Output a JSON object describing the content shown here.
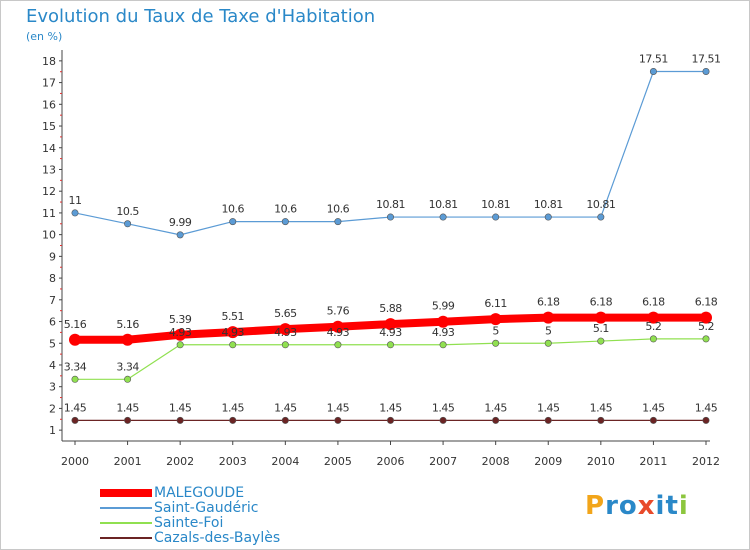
{
  "chart_data": {
    "type": "line",
    "title": "Evolution du Taux de Taxe d'Habitation",
    "subtitle": "(en %)",
    "x": [
      "2000",
      "2001",
      "2002",
      "2003",
      "2004",
      "2005",
      "2006",
      "2007",
      "2008",
      "2009",
      "2010",
      "2011",
      "2012"
    ],
    "y_ticks": [
      "1",
      "2",
      "3",
      "4",
      "5",
      "6",
      "7",
      "8",
      "9",
      "10",
      "11",
      "12",
      "13",
      "14",
      "15",
      "16",
      "17",
      "18"
    ],
    "ylim": [
      0.5,
      18.5
    ],
    "grid": false,
    "legend_position": "bottom-left",
    "series": [
      {
        "name": "MALEGOUDE",
        "color": "#ff0000",
        "values": [
          5.16,
          5.16,
          5.39,
          5.51,
          5.65,
          5.76,
          5.88,
          5.99,
          6.11,
          6.18,
          6.18,
          6.18,
          6.18
        ],
        "labels": [
          "5.16",
          "5.16",
          "5.39",
          "5.51",
          "5.65",
          "5.76",
          "5.88",
          "5.99",
          "6.11",
          "6.18",
          "6.18",
          "6.18",
          "6.18"
        ]
      },
      {
        "name": "Saint-Gaudéric",
        "color": "#5b9bd5",
        "values": [
          11,
          10.5,
          9.99,
          10.6,
          10.6,
          10.6,
          10.81,
          10.81,
          10.81,
          10.81,
          10.81,
          17.51,
          17.51
        ],
        "labels": [
          "11",
          "10.5",
          "9.99",
          "10.6",
          "10.6",
          "10.6",
          "10.81",
          "10.81",
          "10.81",
          "10.81",
          "10.81",
          "17.51",
          "17.51"
        ]
      },
      {
        "name": "Sainte-Foi",
        "color": "#90e050",
        "values": [
          3.34,
          3.34,
          4.93,
          4.93,
          4.93,
          4.93,
          4.93,
          4.93,
          5,
          5,
          5.1,
          5.2,
          5.2
        ],
        "labels": [
          "3.34",
          "3.34",
          "4.93",
          "4.93",
          "4.93",
          "4.93",
          "4.93",
          "4.93",
          "5",
          "5",
          "5.1",
          "5.2",
          "5.2"
        ]
      },
      {
        "name": "Cazals-des-Baylès",
        "color": "#6b2424",
        "values": [
          1.45,
          1.45,
          1.45,
          1.45,
          1.45,
          1.45,
          1.45,
          1.45,
          1.45,
          1.45,
          1.45,
          1.45,
          1.45
        ],
        "labels": [
          "1.45",
          "1.45",
          "1.45",
          "1.45",
          "1.45",
          "1.45",
          "1.45",
          "1.45",
          "1.45",
          "1.45",
          "1.45",
          "1.45",
          "1.45"
        ]
      }
    ]
  },
  "logo": {
    "letters": [
      "P",
      "r",
      "o",
      "x",
      "i",
      "t",
      "i"
    ],
    "colors": [
      "#f2a51a",
      "#2a88c8",
      "#2a88c8",
      "#e84a2a",
      "#2a88c8",
      "#2a88c8",
      "#8cc63e"
    ]
  }
}
